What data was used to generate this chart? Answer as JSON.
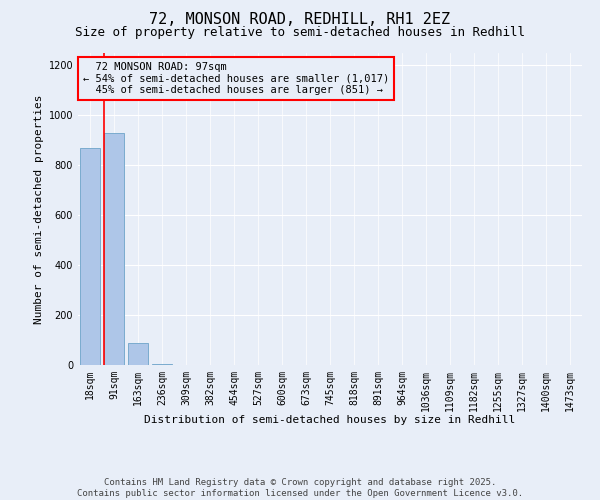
{
  "title": "72, MONSON ROAD, REDHILL, RH1 2EZ",
  "subtitle": "Size of property relative to semi-detached houses in Redhill",
  "xlabel": "Distribution of semi-detached houses by size in Redhill",
  "ylabel": "Number of semi-detached properties",
  "annotation_title": "72 MONSON ROAD: 97sqm",
  "annotation_line1": "← 54% of semi-detached houses are smaller (1,017)",
  "annotation_line2": "45% of semi-detached houses are larger (851) →",
  "footer_line1": "Contains HM Land Registry data © Crown copyright and database right 2025.",
  "footer_line2": "Contains public sector information licensed under the Open Government Licence v3.0.",
  "bar_labels": [
    "18sqm",
    "91sqm",
    "163sqm",
    "236sqm",
    "309sqm",
    "382sqm",
    "454sqm",
    "527sqm",
    "600sqm",
    "673sqm",
    "745sqm",
    "818sqm",
    "891sqm",
    "964sqm",
    "1036sqm",
    "1109sqm",
    "1182sqm",
    "1255sqm",
    "1327sqm",
    "1400sqm",
    "1473sqm"
  ],
  "bar_values": [
    870,
    930,
    90,
    5,
    0,
    0,
    0,
    0,
    0,
    0,
    0,
    0,
    0,
    0,
    0,
    0,
    0,
    0,
    0,
    0,
    0
  ],
  "bar_color": "#aec6e8",
  "bar_edge_color": "#7aabce",
  "red_line_index": 1,
  "ylim": [
    0,
    1250
  ],
  "yticks": [
    0,
    200,
    400,
    600,
    800,
    1000,
    1200
  ],
  "background_color": "#e8eef8",
  "grid_color": "#ffffff",
  "title_fontsize": 11,
  "subtitle_fontsize": 9,
  "axis_label_fontsize": 8,
  "tick_fontsize": 7,
  "annotation_fontsize": 7.5,
  "footer_fontsize": 6.5
}
